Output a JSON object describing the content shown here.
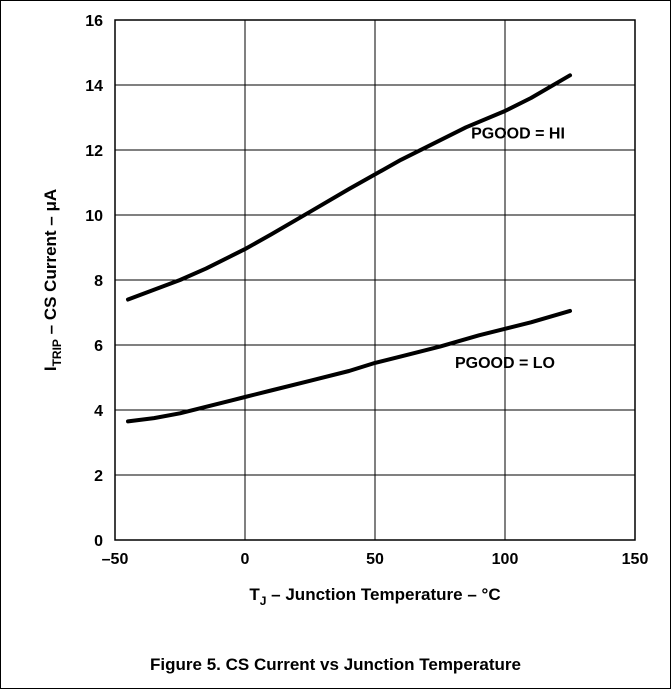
{
  "caption": "Figure 5. CS Current vs Junction Temperature",
  "chart_data": {
    "type": "line",
    "title": "",
    "xlabel": {
      "main": "T",
      "sub": "J",
      "rest": " – Junction Temperature – °C"
    },
    "ylabel": {
      "main": "I",
      "sub": "TRIP",
      "rest": " – CS Current – μA"
    },
    "xlim": [
      -50,
      150
    ],
    "ylim": [
      0,
      16
    ],
    "xticks": [
      -50,
      0,
      50,
      100,
      150
    ],
    "xtick_labels": [
      "–50",
      "0",
      "50",
      "100",
      "150"
    ],
    "yticks": [
      0,
      2,
      4,
      6,
      8,
      10,
      12,
      14,
      16
    ],
    "ytick_labels": [
      "0",
      "2",
      "4",
      "6",
      "8",
      "10",
      "12",
      "14",
      "16"
    ],
    "grid": true,
    "line_color": "#000000",
    "series": [
      {
        "name": "PGOOD = HI",
        "x": [
          -45,
          -40,
          -35,
          -25,
          -15,
          -5,
          0,
          10,
          25,
          40,
          50,
          60,
          75,
          85,
          100,
          110,
          125
        ],
        "y": [
          7.4,
          7.55,
          7.7,
          8.0,
          8.35,
          8.75,
          8.95,
          9.4,
          10.1,
          10.8,
          11.25,
          11.7,
          12.3,
          12.7,
          13.2,
          13.6,
          14.3
        ]
      },
      {
        "name": "PGOOD = LO",
        "x": [
          -45,
          -35,
          -25,
          -15,
          -5,
          0,
          10,
          25,
          40,
          50,
          60,
          75,
          90,
          100,
          110,
          125
        ],
        "y": [
          3.65,
          3.75,
          3.9,
          4.1,
          4.3,
          4.4,
          4.6,
          4.9,
          5.2,
          5.45,
          5.65,
          5.95,
          6.3,
          6.5,
          6.7,
          7.05
        ]
      }
    ]
  }
}
